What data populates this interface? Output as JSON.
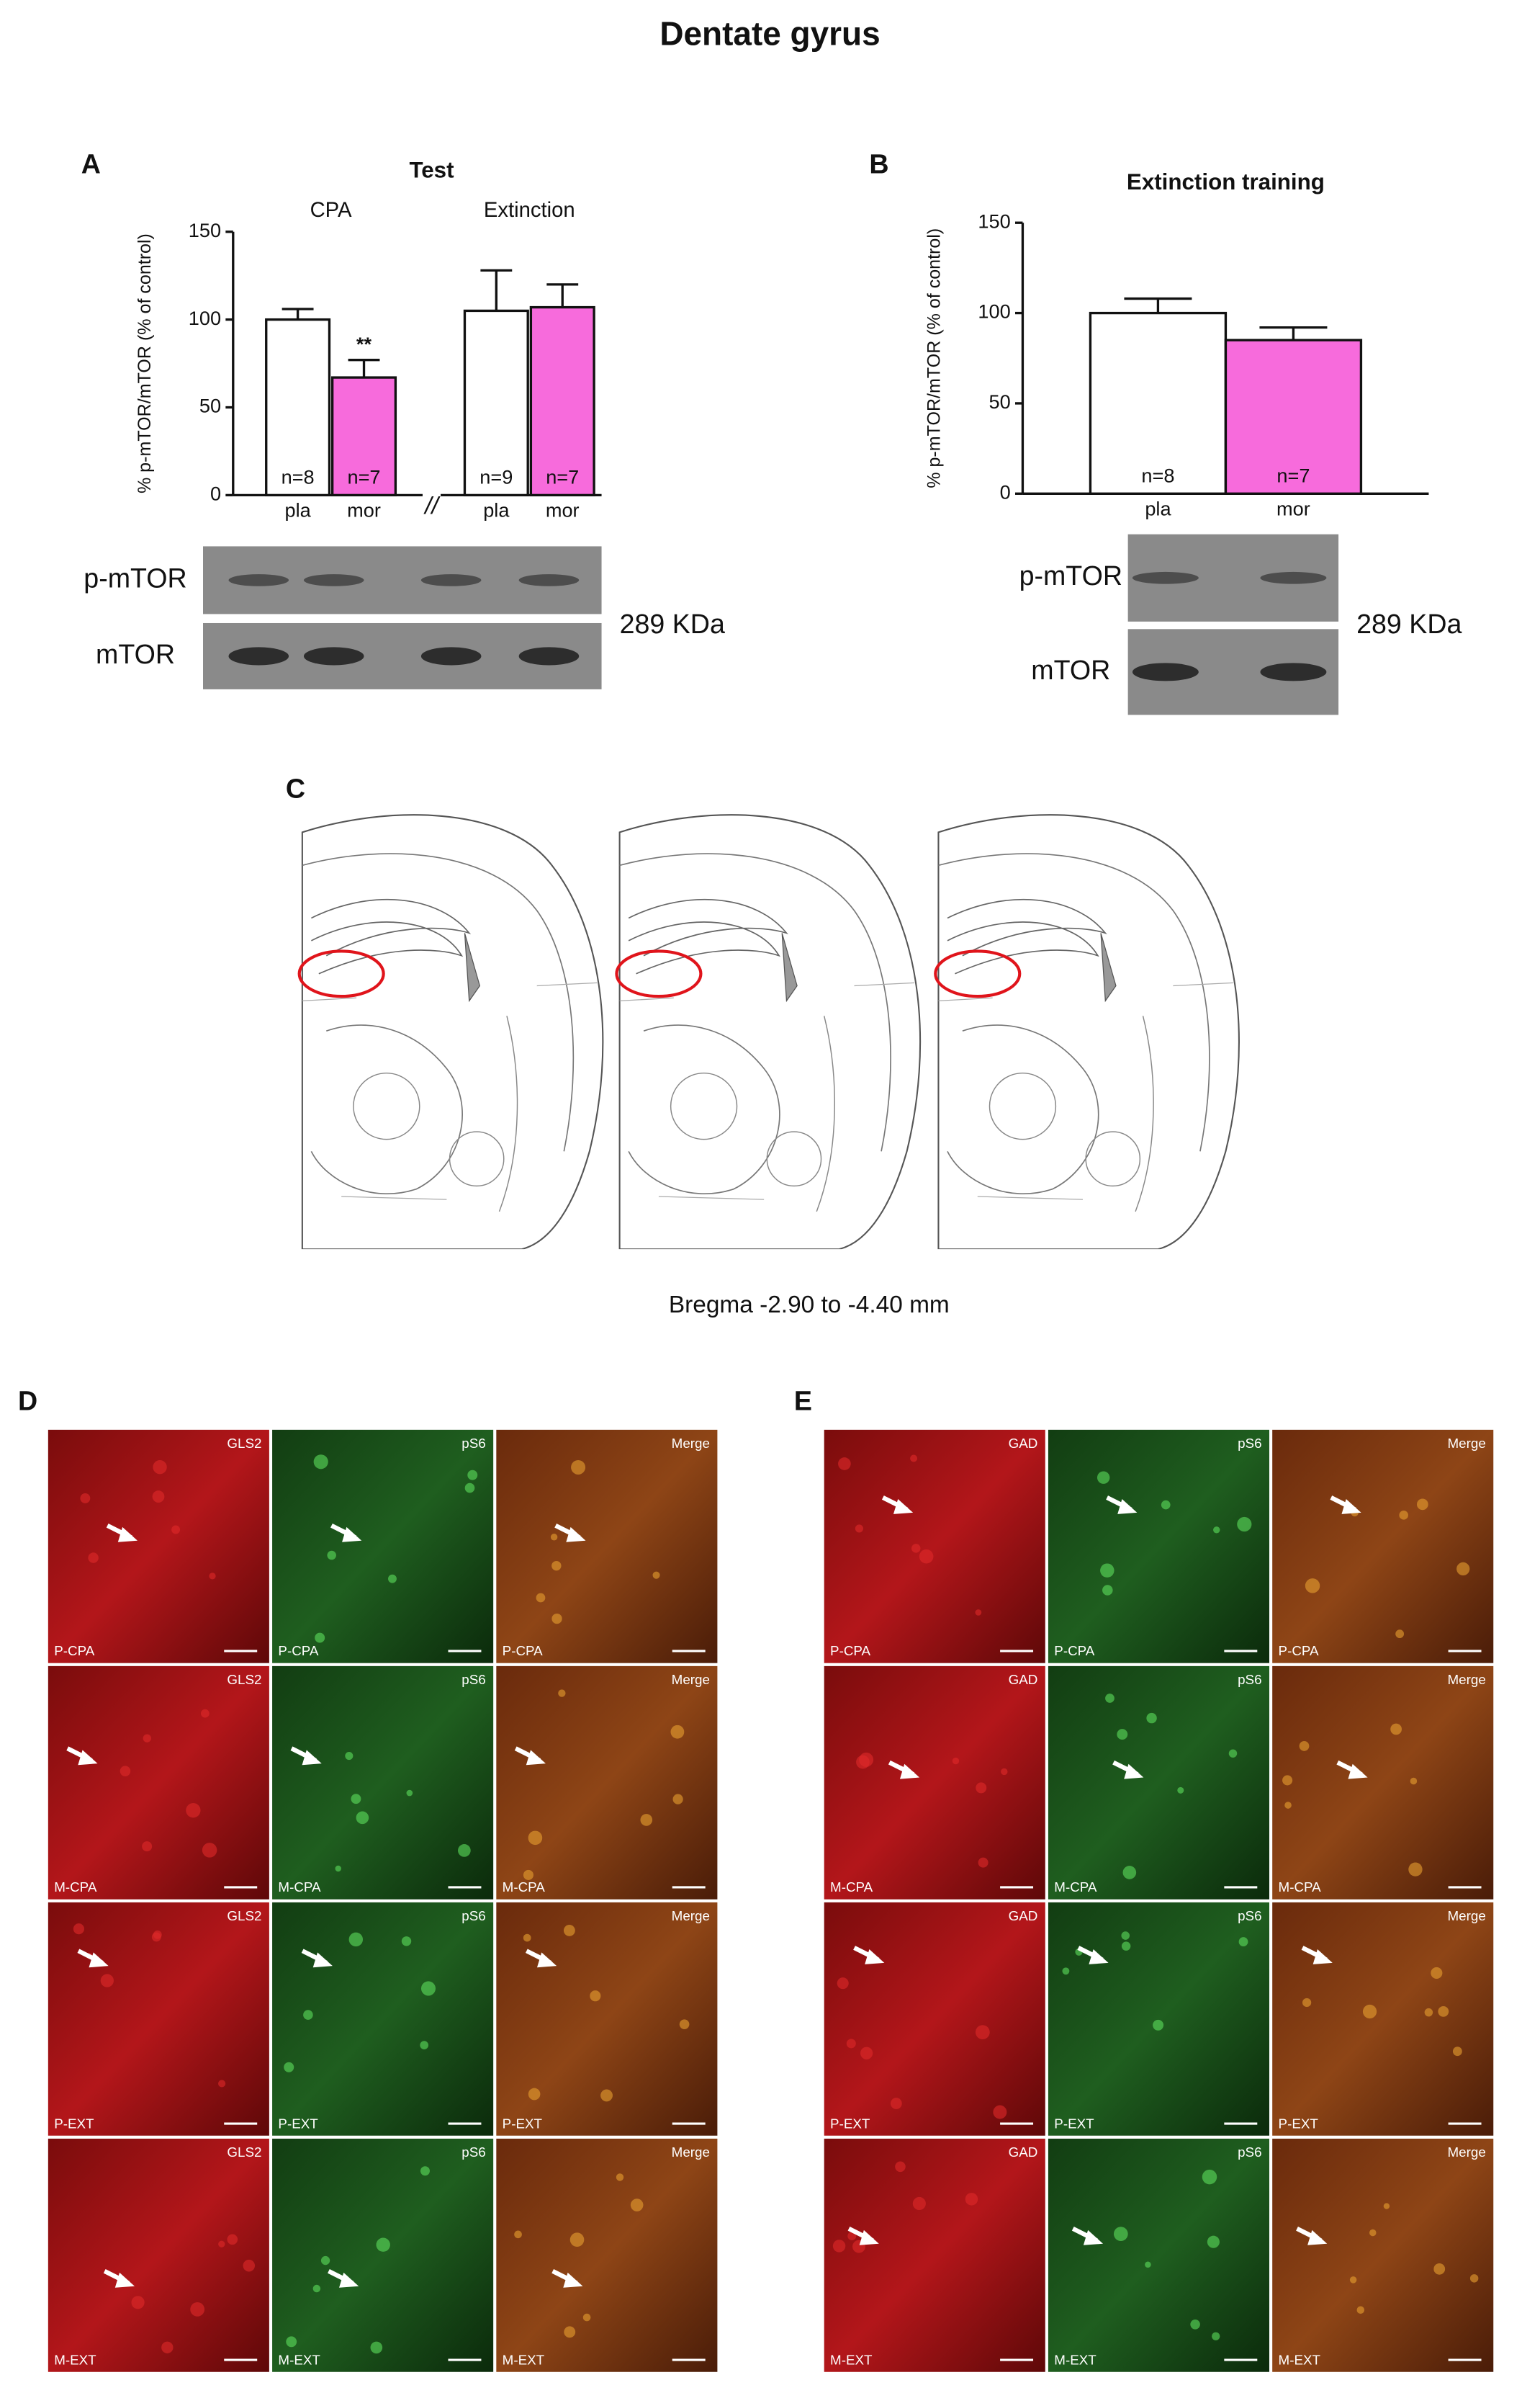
{
  "title": "Dentate gyrus",
  "chart_data": [
    {
      "type": "bar",
      "panel": "A",
      "title": "Test",
      "y_label": "% p-mTOR/mTOR (% of control)",
      "groups": [
        "CPA",
        "Extinction"
      ],
      "categories": [
        "pla",
        "mor",
        "pla",
        "mor"
      ],
      "values": [
        100,
        67,
        105,
        107
      ],
      "errors": [
        6,
        10,
        23,
        13
      ],
      "colors": [
        "#ffffff",
        "#f76bdc",
        "#ffffff",
        "#f76bdc"
      ],
      "n_labels": [
        "n=8",
        "n=7",
        "n=9",
        "n=7"
      ],
      "significance": [
        null,
        "**",
        null,
        null
      ],
      "axis_break": "//",
      "ylim": [
        0,
        150
      ],
      "yticks": [
        0,
        50,
        100,
        150
      ]
    },
    {
      "type": "bar",
      "panel": "B",
      "title": "Extinction training",
      "y_label": "% p-mTOR/mTOR (% of control)",
      "categories": [
        "pla",
        "mor"
      ],
      "values": [
        100,
        85
      ],
      "errors": [
        8,
        7
      ],
      "colors": [
        "#ffffff",
        "#f76bdc"
      ],
      "n_labels": [
        "n=8",
        "n=7"
      ],
      "ylim": [
        0,
        150
      ],
      "yticks": [
        0,
        50,
        100,
        150
      ]
    }
  ],
  "blots": [
    {
      "labels": [
        "p-mTOR",
        "mTOR"
      ],
      "size": "289 KDa"
    },
    {
      "labels": [
        "p-mTOR",
        "mTOR"
      ],
      "size": "289 KDa"
    }
  ],
  "atlas": {
    "letter": "C",
    "caption": "Bregma -2.90 to -4.40 mm"
  },
  "micrographs": [
    {
      "letter": "D",
      "channels": [
        "GLS2",
        "pS6",
        "Merge"
      ],
      "conditions": [
        "P-CPA",
        "M-CPA",
        "P-EXT",
        "M-EXT"
      ]
    },
    {
      "letter": "E",
      "channels": [
        "GAD",
        "pS6",
        "Merge"
      ],
      "conditions": [
        "P-CPA",
        "M-CPA",
        "P-EXT",
        "M-EXT"
      ]
    }
  ]
}
